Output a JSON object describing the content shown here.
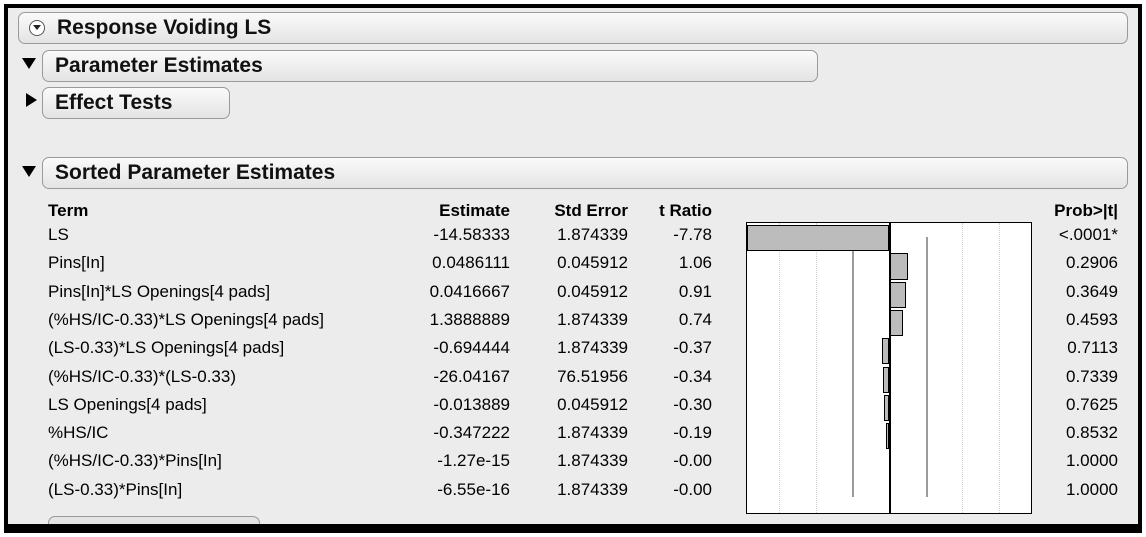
{
  "report": {
    "title": "Response Voiding LS",
    "sections": {
      "parameter_estimates": "Parameter Estimates",
      "effect_tests": "Effect Tests",
      "sorted_parameter_estimates": "Sorted Parameter Estimates"
    }
  },
  "table": {
    "columns": {
      "term": "Term",
      "estimate": "Estimate",
      "std_error": "Std Error",
      "t_ratio": "t Ratio",
      "prob": "Prob>|t|"
    },
    "rows": [
      {
        "term": "LS",
        "estimate": "-14.58333",
        "std_error": "1.874339",
        "t_ratio": "-7.78",
        "prob": "<.0001*",
        "t": -7.78
      },
      {
        "term": "Pins[In]",
        "estimate": "0.0486111",
        "std_error": "0.045912",
        "t_ratio": "1.06",
        "prob": "0.2906",
        "t": 1.06
      },
      {
        "term": "Pins[In]*LS Openings[4 pads]",
        "estimate": "0.0416667",
        "std_error": "0.045912",
        "t_ratio": "0.91",
        "prob": "0.3649",
        "t": 0.91
      },
      {
        "term": "(%HS/IC-0.33)*LS Openings[4 pads]",
        "estimate": "1.3888889",
        "std_error": "1.874339",
        "t_ratio": "0.74",
        "prob": "0.4593",
        "t": 0.74
      },
      {
        "term": "(LS-0.33)*LS Openings[4 pads]",
        "estimate": "-0.694444",
        "std_error": "1.874339",
        "t_ratio": "-0.37",
        "prob": "0.7113",
        "t": -0.37
      },
      {
        "term": "(%HS/IC-0.33)*(LS-0.33)",
        "estimate": "-26.04167",
        "std_error": "76.51956",
        "t_ratio": "-0.34",
        "prob": "0.7339",
        "t": -0.34
      },
      {
        "term": "LS Openings[4 pads]",
        "estimate": "-0.013889",
        "std_error": "0.045912",
        "t_ratio": "-0.30",
        "prob": "0.7625",
        "t": -0.3
      },
      {
        "term": "%HS/IC",
        "estimate": "-0.347222",
        "std_error": "1.874339",
        "t_ratio": "-0.19",
        "prob": "0.8532",
        "t": -0.19
      },
      {
        "term": "(%HS/IC-0.33)*Pins[In]",
        "estimate": "-1.27e-15",
        "std_error": "1.874339",
        "t_ratio": "-0.00",
        "prob": "1.0000",
        "t": 0.0
      },
      {
        "term": "(LS-0.33)*Pins[In]",
        "estimate": "-6.55e-16",
        "std_error": "1.874339",
        "t_ratio": "-0.00",
        "prob": "1.0000",
        "t": 0.0
      }
    ]
  },
  "chart_data": {
    "type": "bar",
    "orientation": "horizontal",
    "categories": [
      "LS",
      "Pins[In]",
      "Pins[In]*LS Openings[4 pads]",
      "(%HS/IC-0.33)*LS Openings[4 pads]",
      "(LS-0.33)*LS Openings[4 pads]",
      "(%HS/IC-0.33)*(LS-0.33)",
      "LS Openings[4 pads]",
      "%HS/IC",
      "(%HS/IC-0.33)*Pins[In]",
      "(LS-0.33)*Pins[In]"
    ],
    "values": [
      -7.78,
      1.06,
      0.91,
      0.74,
      -0.37,
      -0.34,
      -0.3,
      -0.19,
      0.0,
      0.0
    ],
    "xlim": [
      -7.78,
      7.78
    ],
    "reference_lines": [
      -2.0,
      2.0
    ],
    "grid": true
  },
  "colors": {
    "panel": "#ececec",
    "bar": "#bcbcbc",
    "frame": "#000000"
  }
}
